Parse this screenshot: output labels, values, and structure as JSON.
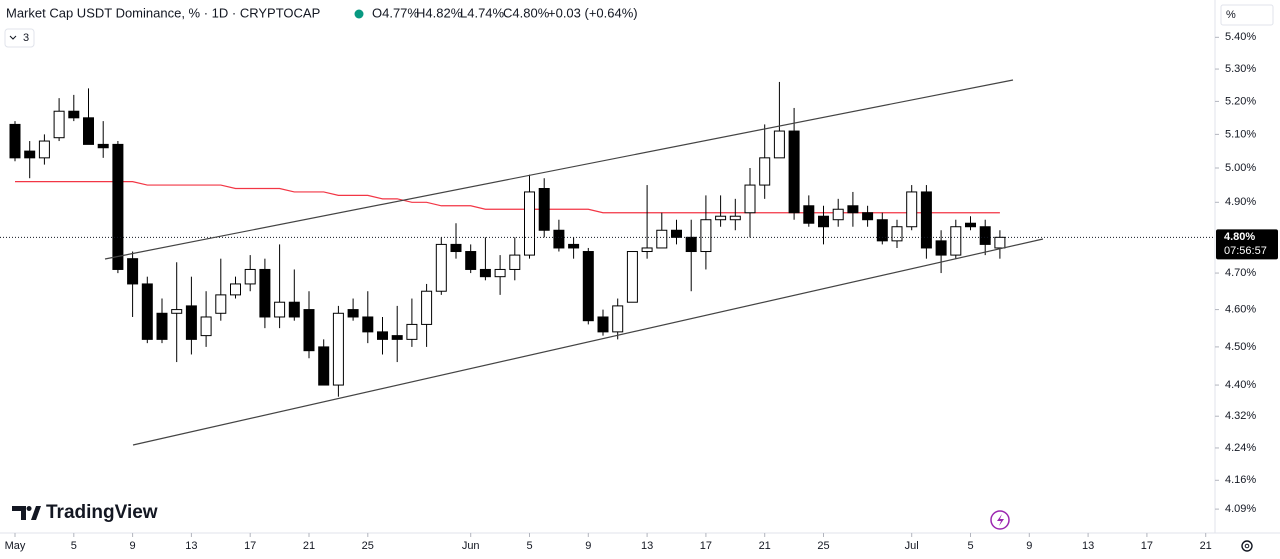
{
  "header": {
    "title": "Market Cap USDT Dominance, % · 1D · CRYPTOCAP",
    "ohlc": [
      "O4.77%",
      "H4.82%",
      "L4.74%",
      "C4.80%",
      "+0.03 (+0.64%)"
    ],
    "indicators_count": "3",
    "scale_mode": "%",
    "brand": "TradingView"
  },
  "chart_data": {
    "type": "candlestick",
    "log_scale": true,
    "grid": false,
    "x": [
      "May 1",
      "May 2",
      "May 3",
      "May 4",
      "May 5",
      "May 6",
      "May 7",
      "May 8",
      "May 9",
      "May 10",
      "May 11",
      "May 12",
      "May 13",
      "May 14",
      "May 15",
      "May 16",
      "May 17",
      "May 18",
      "May 19",
      "May 20",
      "May 21",
      "May 22",
      "May 23",
      "May 24",
      "May 25",
      "May 26",
      "May 27",
      "May 28",
      "May 29",
      "May 30",
      "May 31",
      "Jun 1",
      "Jun 2",
      "Jun 3",
      "Jun 4",
      "Jun 5",
      "Jun 6",
      "Jun 7",
      "Jun 8",
      "Jun 9",
      "Jun 10",
      "Jun 11",
      "Jun 12",
      "Jun 13",
      "Jun 14",
      "Jun 15",
      "Jun 16",
      "Jun 17",
      "Jun 18",
      "Jun 19",
      "Jun 20",
      "Jun 21",
      "Jun 22",
      "Jun 23",
      "Jun 24",
      "Jun 25",
      "Jun 26",
      "Jun 27",
      "Jun 28",
      "Jun 29",
      "Jun 30",
      "Jul 1",
      "Jul 2",
      "Jul 3",
      "Jul 4",
      "Jul 5",
      "Jul 6",
      "Jul 7",
      "Jul 8",
      "Jul 9",
      "Jul 10",
      "Jul 11",
      "Jul 12",
      "Jul 13",
      "Jul 14",
      "Jul 15",
      "Jul 16",
      "Jul 17",
      "Jul 18",
      "Jul 19",
      "Jul 20",
      "Jul 21"
    ],
    "open": [
      5.13,
      5.05,
      5.03,
      5.09,
      5.17,
      5.15,
      5.07,
      5.07,
      4.74,
      4.67,
      4.59,
      4.59,
      4.61,
      4.53,
      4.59,
      4.64,
      4.67,
      4.71,
      4.58,
      4.62,
      4.6,
      4.5,
      4.4,
      4.6,
      4.58,
      4.54,
      4.53,
      4.52,
      4.56,
      4.65,
      4.78,
      4.76,
      4.71,
      4.69,
      4.71,
      4.75,
      4.94,
      4.82,
      4.78,
      4.76,
      4.58,
      4.54,
      4.62,
      4.76,
      4.77,
      4.82,
      4.8,
      4.76,
      4.85,
      4.85,
      4.87,
      4.95,
      5.03,
      5.11,
      4.89,
      4.86,
      4.85,
      4.89,
      4.87,
      4.85,
      4.79,
      4.83,
      4.93,
      4.79,
      4.75,
      4.84,
      4.83,
      4.77,
      null,
      null,
      null,
      null,
      null,
      null,
      null,
      null,
      null,
      null,
      null,
      null,
      null,
      null
    ],
    "high": [
      5.14,
      5.08,
      5.1,
      5.21,
      5.22,
      5.24,
      5.14,
      5.08,
      4.76,
      4.69,
      4.63,
      4.73,
      4.69,
      4.65,
      4.74,
      4.69,
      4.75,
      4.74,
      4.78,
      4.71,
      4.65,
      4.52,
      4.61,
      4.63,
      4.65,
      4.58,
      4.61,
      4.63,
      4.67,
      4.8,
      4.84,
      4.78,
      4.8,
      4.75,
      4.8,
      4.98,
      4.97,
      4.85,
      4.8,
      4.77,
      4.6,
      4.63,
      4.76,
      4.95,
      4.87,
      4.85,
      4.85,
      4.92,
      4.92,
      4.91,
      5.0,
      5.13,
      5.26,
      5.18,
      4.92,
      4.89,
      4.91,
      4.93,
      4.89,
      4.87,
      4.85,
      4.95,
      4.95,
      4.82,
      4.85,
      4.86,
      4.85,
      4.82,
      null,
      null,
      null,
      null,
      null,
      null,
      null,
      null,
      null,
      null,
      null,
      null,
      null,
      null
    ],
    "low": [
      5.02,
      4.97,
      5.01,
      5.08,
      5.14,
      5.07,
      5.03,
      4.7,
      4.58,
      4.51,
      4.51,
      4.46,
      4.48,
      4.5,
      4.57,
      4.63,
      4.65,
      4.55,
      4.55,
      4.57,
      4.47,
      4.4,
      4.37,
      4.57,
      4.51,
      4.48,
      4.46,
      4.5,
      4.5,
      4.64,
      4.74,
      4.7,
      4.68,
      4.64,
      4.68,
      4.74,
      4.8,
      4.76,
      4.74,
      4.56,
      4.53,
      4.52,
      4.62,
      4.74,
      4.77,
      4.78,
      4.65,
      4.71,
      4.83,
      4.82,
      4.8,
      4.91,
      5.03,
      4.85,
      4.83,
      4.78,
      4.83,
      4.83,
      4.83,
      4.78,
      4.77,
      4.82,
      4.74,
      4.7,
      4.74,
      4.82,
      4.75,
      4.74,
      null,
      null,
      null,
      null,
      null,
      null,
      null,
      null,
      null,
      null,
      null,
      null,
      null,
      null
    ],
    "close": [
      5.03,
      5.03,
      5.08,
      5.17,
      5.15,
      5.07,
      5.06,
      4.71,
      4.67,
      4.52,
      4.52,
      4.6,
      4.52,
      4.58,
      4.64,
      4.67,
      4.71,
      4.58,
      4.62,
      4.58,
      4.49,
      4.4,
      4.59,
      4.58,
      4.54,
      4.52,
      4.52,
      4.56,
      4.65,
      4.78,
      4.76,
      4.71,
      4.69,
      4.71,
      4.75,
      4.93,
      4.82,
      4.77,
      4.77,
      4.57,
      4.54,
      4.61,
      4.76,
      4.77,
      4.82,
      4.8,
      4.76,
      4.85,
      4.86,
      4.86,
      4.95,
      5.03,
      5.11,
      4.87,
      4.84,
      4.83,
      4.88,
      4.87,
      4.85,
      4.79,
      4.83,
      4.93,
      4.77,
      4.75,
      4.83,
      4.83,
      4.78,
      4.8,
      null,
      null,
      null,
      null,
      null,
      null,
      null,
      null,
      null,
      null,
      null,
      null,
      null,
      null
    ],
    "ma": {
      "color": "#f23645",
      "values": [
        4.96,
        4.96,
        4.96,
        4.96,
        4.96,
        4.96,
        4.96,
        4.96,
        4.96,
        4.95,
        4.95,
        4.95,
        4.95,
        4.95,
        4.95,
        4.94,
        4.94,
        4.94,
        4.94,
        4.93,
        4.93,
        4.93,
        4.92,
        4.92,
        4.92,
        4.91,
        4.91,
        4.9,
        4.9,
        4.89,
        4.89,
        4.89,
        4.88,
        4.88,
        4.88,
        4.88,
        4.88,
        4.88,
        4.88,
        4.88,
        4.87,
        4.87,
        4.87,
        4.87,
        4.87,
        4.87,
        4.87,
        4.87,
        4.87,
        4.87,
        4.87,
        4.87,
        4.87,
        4.87,
        4.87,
        4.87,
        4.87,
        4.87,
        4.87,
        4.87,
        4.87,
        4.87,
        4.87,
        4.87,
        4.87,
        4.87,
        4.87,
        4.87,
        null,
        null,
        null,
        null,
        null,
        null,
        null,
        null,
        null,
        null,
        null,
        null,
        null,
        null
      ]
    },
    "up_color": "#ffffff",
    "down_color": "#000000",
    "wick_color": "#000000",
    "ylim": [
      4.04,
      5.52
    ],
    "yticks": [
      {
        "value": 5.4,
        "label": "5.40%"
      },
      {
        "value": 5.3,
        "label": "5.30%"
      },
      {
        "value": 5.2,
        "label": "5.20%"
      },
      {
        "value": 5.1,
        "label": "5.10%"
      },
      {
        "value": 5.0,
        "label": "5.00%"
      },
      {
        "value": 4.9,
        "label": "4.90%"
      },
      {
        "value": 4.7,
        "label": "4.70%"
      },
      {
        "value": 4.6,
        "label": "4.60%"
      },
      {
        "value": 4.5,
        "label": "4.50%"
      },
      {
        "value": 4.4,
        "label": "4.40%"
      },
      {
        "value": 4.32,
        "label": "4.32%"
      },
      {
        "value": 4.24,
        "label": "4.24%"
      },
      {
        "value": 4.16,
        "label": "4.16%"
      },
      {
        "value": 4.09,
        "label": "4.09%"
      }
    ],
    "xticks": [
      {
        "value": "May 1",
        "label": "May"
      },
      {
        "value": "May 5",
        "label": "5"
      },
      {
        "value": "May 9",
        "label": "9"
      },
      {
        "value": "May 13",
        "label": "13"
      },
      {
        "value": "May 17",
        "label": "17"
      },
      {
        "value": "May 21",
        "label": "21"
      },
      {
        "value": "May 25",
        "label": "25"
      },
      {
        "value": "Jun 1",
        "label": "Jun"
      },
      {
        "value": "Jun 5",
        "label": "5"
      },
      {
        "value": "Jun 9",
        "label": "9"
      },
      {
        "value": "Jun 13",
        "label": "13"
      },
      {
        "value": "Jun 17",
        "label": "17"
      },
      {
        "value": "Jun 21",
        "label": "21"
      },
      {
        "value": "Jun 25",
        "label": "25"
      },
      {
        "value": "Jul 1",
        "label": "Jul"
      },
      {
        "value": "Jul 5",
        "label": "5"
      },
      {
        "value": "Jul 9",
        "label": "9"
      },
      {
        "value": "Jul 13",
        "label": "13"
      },
      {
        "value": "Jul 17",
        "label": "17"
      },
      {
        "value": "Jul 21",
        "label": "21"
      }
    ],
    "last_price": {
      "value": 4.8,
      "label": "4.80%",
      "countdown": "07:56:57"
    }
  }
}
